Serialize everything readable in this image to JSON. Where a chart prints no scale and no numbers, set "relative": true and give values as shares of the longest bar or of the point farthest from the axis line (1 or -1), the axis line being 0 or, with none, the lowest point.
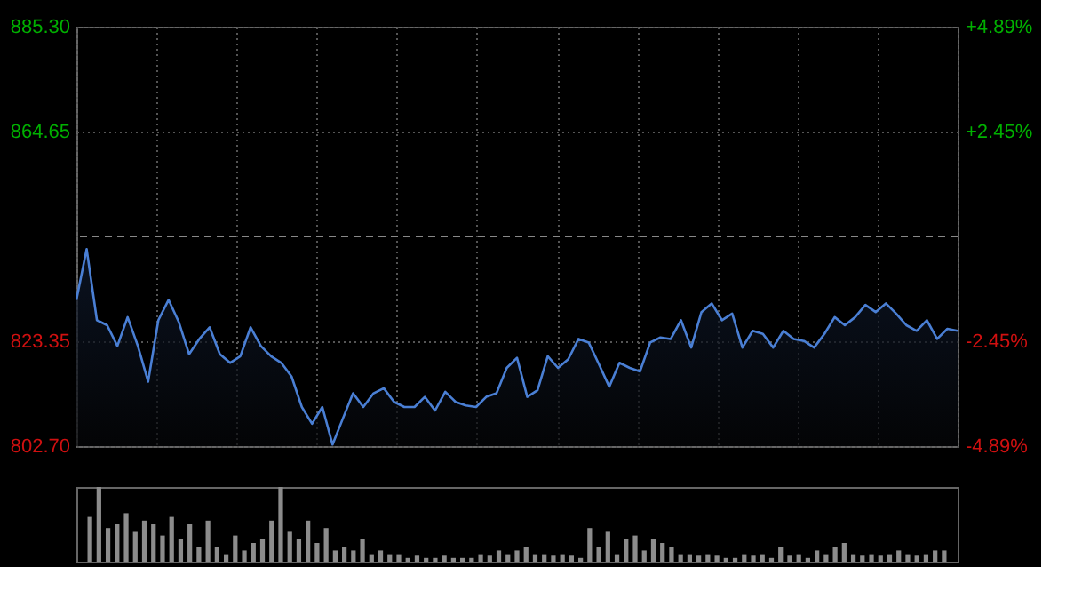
{
  "chart_data": [
    {
      "type": "area",
      "ylim": [
        802.7,
        885.3
      ],
      "yticks": [
        {
          "value": 802.7,
          "label": "802.70"
        },
        823.35,
        864.65,
        {
          "value": 885.3,
          "label": "885.30"
        }
      ],
      "y2lim": [
        -4.89,
        4.89
      ],
      "y2ticks": [
        {
          "value": 4.89,
          "label": "+4.89%"
        },
        {
          "value": 2.45,
          "label": "+2.45%"
        },
        {
          "value": -2.45,
          "label": "-2.45%"
        },
        {
          "value": -4.89,
          "label": "-4.89%"
        }
      ],
      "ref_lines": [
        {
          "axis": "y2",
          "value": 0,
          "line_style": "dashed"
        }
      ],
      "grid": true,
      "tick_labels": "y",
      "categories": [
        null,
        null,
        null,
        null,
        null,
        null,
        null,
        null,
        null,
        null,
        null,
        null,
        null,
        null,
        null,
        null,
        null,
        null,
        null,
        null,
        null,
        null,
        null,
        null,
        null,
        null,
        null,
        null,
        null,
        null,
        null,
        null,
        null,
        null,
        null,
        null,
        null,
        null,
        null,
        null,
        null,
        null,
        null,
        null,
        null,
        null,
        null,
        null,
        null,
        null,
        null,
        null,
        null,
        null,
        null,
        null,
        null,
        null,
        null,
        null,
        null,
        null,
        null,
        null,
        null,
        null,
        null,
        null,
        null,
        null,
        null,
        null,
        null,
        null,
        null,
        null,
        null,
        null,
        null,
        null,
        null,
        null,
        null,
        null,
        null,
        null,
        null
      ],
      "series": [
        {
          "color": "#4a7fd4",
          "values": [
            831.5,
            841.5,
            827.5,
            826.5,
            822.4,
            828.1,
            822.4,
            815.4,
            827.5,
            831.5,
            827.1,
            820.8,
            823.8,
            826.1,
            820.8,
            819.1,
            820.4,
            826.1,
            822.4,
            820.4,
            819.1,
            816.4,
            810.4,
            807.1,
            810.4,
            803.0,
            808.1,
            813.1,
            810.4,
            813.1,
            814.1,
            811.4,
            810.4,
            810.4,
            812.4,
            809.7,
            813.4,
            811.4,
            810.7,
            810.4,
            812.4,
            813.1,
            818.1,
            820.1,
            812.4,
            813.7,
            820.4,
            818.1,
            819.8,
            823.8,
            823.1,
            818.8,
            814.4,
            819.1,
            818.1,
            817.4,
            823.1,
            824.1,
            823.8,
            827.5,
            822.1,
            829.1,
            830.8,
            827.5,
            828.8,
            822.1,
            825.4,
            824.8,
            822.1,
            825.4,
            823.8,
            823.4,
            822.1,
            824.8,
            828.1,
            826.5,
            828.1,
            830.5,
            829.1,
            830.8,
            828.8,
            826.5,
            825.4,
            827.5,
            823.8,
            825.8,
            825.4
          ]
        }
      ]
    },
    {
      "type": "bar",
      "relative": true,
      "tick_labels": false,
      "color": "#8c8c8c",
      "categories": [
        null,
        null,
        null,
        null,
        null,
        null,
        null,
        null,
        null,
        null,
        null,
        null,
        null,
        null,
        null,
        null,
        null,
        null,
        null,
        null,
        null,
        null,
        null,
        null,
        null,
        null,
        null,
        null,
        null,
        null,
        null,
        null,
        null,
        null,
        null,
        null,
        null,
        null,
        null,
        null,
        null,
        null,
        null,
        null,
        null,
        null,
        null,
        null,
        null,
        null,
        null,
        null,
        null,
        null,
        null,
        null,
        null,
        null,
        null,
        null,
        null,
        null,
        null,
        null,
        null,
        null,
        null,
        null,
        null,
        null,
        null,
        null,
        null,
        null,
        null,
        null,
        null,
        null,
        null,
        null,
        null,
        null,
        null,
        null,
        null,
        null,
        null,
        null,
        null,
        null,
        null,
        null,
        null,
        null,
        null
      ],
      "values": [
        0.6,
        1.0,
        0.45,
        0.5,
        0.65,
        0.4,
        0.55,
        0.5,
        0.35,
        0.6,
        0.3,
        0.5,
        0.2,
        0.55,
        0.2,
        0.1,
        0.35,
        0.15,
        0.25,
        0.3,
        0.55,
        1.0,
        0.4,
        0.3,
        0.55,
        0.25,
        0.45,
        0.15,
        0.2,
        0.15,
        0.3,
        0.1,
        0.15,
        0.1,
        0.1,
        0.05,
        0.08,
        0.05,
        0.05,
        0.08,
        0.05,
        0.05,
        0.05,
        0.1,
        0.08,
        0.15,
        0.1,
        0.15,
        0.2,
        0.1,
        0.1,
        0.08,
        0.1,
        0.08,
        0.05,
        0.45,
        0.2,
        0.4,
        0.1,
        0.3,
        0.35,
        0.15,
        0.3,
        0.25,
        0.2,
        0.1,
        0.1,
        0.08,
        0.1,
        0.08,
        0.05,
        0.05,
        0.1,
        0.08,
        0.1,
        0.05,
        0.2,
        0.08,
        0.1,
        0.05,
        0.15,
        0.1,
        0.2,
        0.25,
        0.1,
        0.08,
        0.1,
        0.08,
        0.1,
        0.15,
        0.1,
        0.08,
        0.1,
        0.15,
        0.15
      ]
    }
  ]
}
